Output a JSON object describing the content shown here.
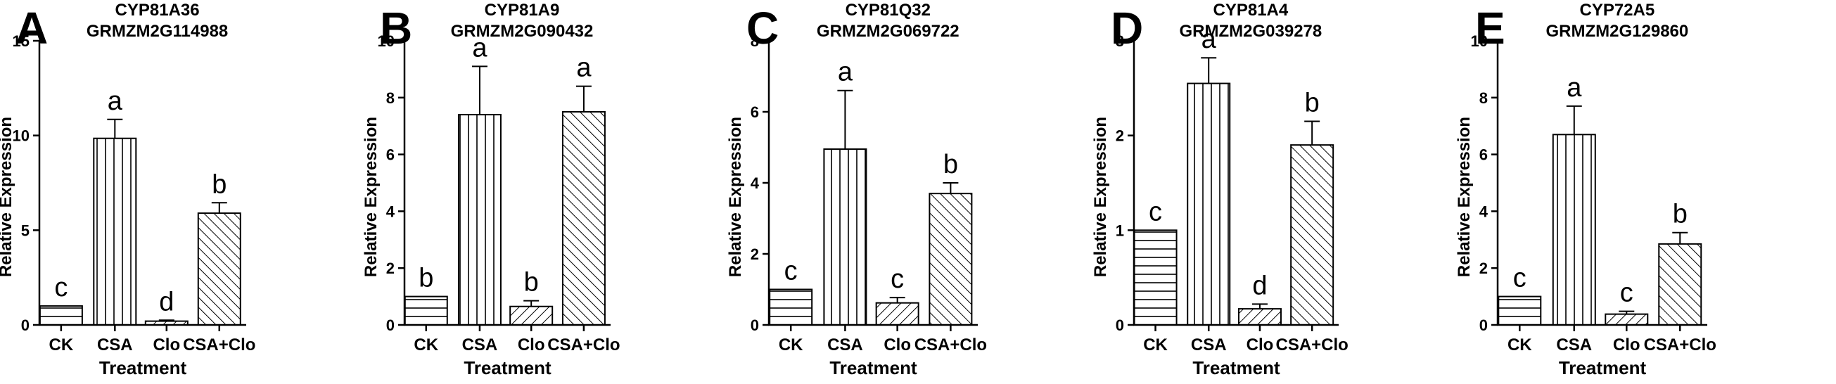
{
  "chart_data": [
    {
      "panel_label": "A",
      "type": "bar",
      "title": [
        "CYP81A36",
        "GRMZM2G114988"
      ],
      "xlabel": "Treatment",
      "ylabel": "Relative Expression",
      "ylim": [
        0,
        15
      ],
      "yticks": [
        0,
        5,
        10,
        15
      ],
      "categories": [
        "CK",
        "CSA",
        "Clo",
        "CSA+Clo"
      ],
      "values": [
        1.0,
        9.85,
        0.2,
        5.9
      ],
      "errors": [
        0.0,
        1.0,
        0.05,
        0.55
      ],
      "significance": [
        "c",
        "a",
        "d",
        "b"
      ],
      "patterns": [
        "horizontal",
        "vertical",
        "diagonal-right",
        "diagonal-left"
      ]
    },
    {
      "panel_label": "B",
      "type": "bar",
      "title": [
        "CYP81A9",
        "GRMZM2G090432"
      ],
      "xlabel": "Treatment",
      "ylabel": "Relative Expression",
      "ylim": [
        0,
        10
      ],
      "yticks": [
        0,
        2,
        4,
        6,
        8,
        10
      ],
      "categories": [
        "CK",
        "CSA",
        "Clo",
        "CSA+Clo"
      ],
      "values": [
        1.0,
        7.4,
        0.65,
        7.5
      ],
      "errors": [
        0.0,
        1.7,
        0.2,
        0.9
      ],
      "significance": [
        "b",
        "a",
        "b",
        "a"
      ],
      "patterns": [
        "horizontal",
        "vertical",
        "diagonal-right",
        "diagonal-left"
      ]
    },
    {
      "panel_label": "C",
      "type": "bar",
      "title": [
        "CYP81Q32",
        "GRMZM2G069722"
      ],
      "xlabel": "Treatment",
      "ylabel": "Relative Expression",
      "ylim": [
        0,
        8
      ],
      "yticks": [
        0,
        2,
        4,
        6,
        8
      ],
      "categories": [
        "CK",
        "CSA",
        "Clo",
        "CSA+Clo"
      ],
      "values": [
        1.0,
        4.95,
        0.62,
        3.7
      ],
      "errors": [
        0.0,
        1.65,
        0.15,
        0.3
      ],
      "significance": [
        "c",
        "a",
        "c",
        "b"
      ],
      "patterns": [
        "horizontal",
        "vertical",
        "diagonal-right",
        "diagonal-left"
      ]
    },
    {
      "panel_label": "D",
      "type": "bar",
      "title": [
        "CYP81A4",
        "GRMZM2G039278"
      ],
      "xlabel": "Treatment",
      "ylabel": "Relative Expression",
      "ylim": [
        0,
        3
      ],
      "yticks": [
        0,
        1,
        2,
        3
      ],
      "categories": [
        "CK",
        "CSA",
        "Clo",
        "CSA+Clo"
      ],
      "values": [
        1.0,
        2.55,
        0.17,
        1.9
      ],
      "errors": [
        0.0,
        0.27,
        0.05,
        0.25
      ],
      "significance": [
        "c",
        "a",
        "d",
        "b"
      ],
      "patterns": [
        "horizontal",
        "vertical",
        "diagonal-right",
        "diagonal-left"
      ]
    },
    {
      "panel_label": "E",
      "type": "bar",
      "title": [
        "CYP72A5",
        "GRMZM2G129860"
      ],
      "xlabel": "Treatment",
      "ylabel": "Relative Expression",
      "ylim": [
        0,
        10
      ],
      "yticks": [
        0,
        2,
        4,
        6,
        8,
        10
      ],
      "categories": [
        "CK",
        "CSA",
        "Clo",
        "CSA+Clo"
      ],
      "values": [
        1.0,
        6.7,
        0.38,
        2.85
      ],
      "errors": [
        0.0,
        1.0,
        0.1,
        0.4
      ],
      "significance": [
        "c",
        "a",
        "c",
        "b"
      ],
      "patterns": [
        "horizontal",
        "vertical",
        "diagonal-right",
        "diagonal-left"
      ]
    }
  ]
}
